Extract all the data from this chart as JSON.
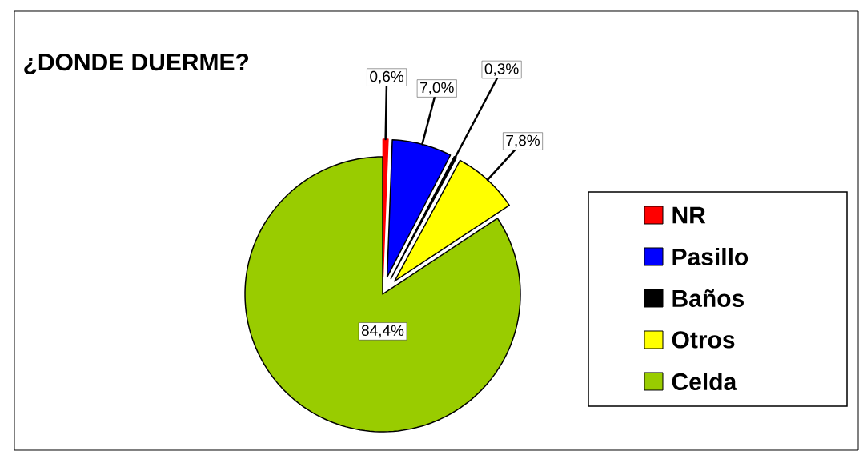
{
  "chart_data": {
    "type": "pie",
    "title": "¿DONDE DUERME?",
    "categories": [
      "NR",
      "Pasillo",
      "Baños",
      "Otros",
      "Celda"
    ],
    "values": [
      0.6,
      7.0,
      0.3,
      7.8,
      84.4
    ],
    "value_labels": [
      "0,6%",
      "7,0%",
      "0,3%",
      "7,8%",
      "84,4%"
    ],
    "colors": [
      "#ff0000",
      "#0000ff",
      "#000000",
      "#ffff00",
      "#99cc00"
    ],
    "legend": "right"
  }
}
